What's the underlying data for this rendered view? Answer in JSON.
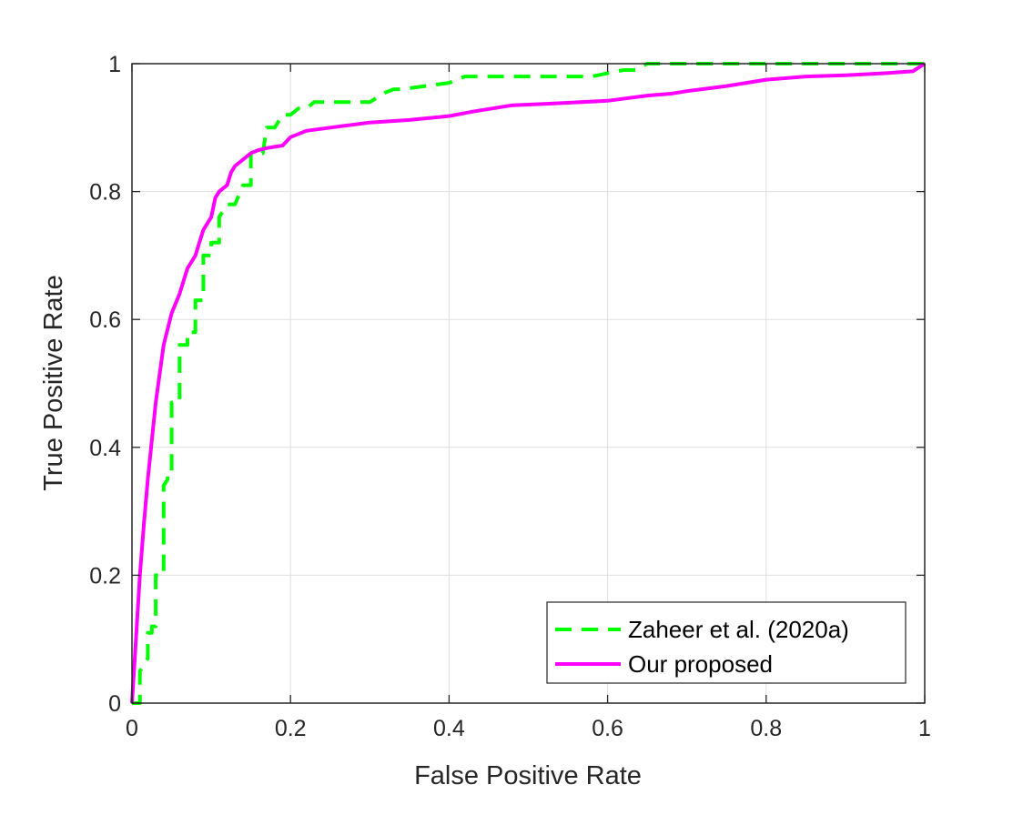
{
  "chart_data": {
    "type": "line",
    "xlabel": "False Positive Rate",
    "ylabel": "True Positive Rate",
    "xlim": [
      0,
      1
    ],
    "ylim": [
      0,
      1
    ],
    "xticks": [
      0,
      0.2,
      0.4,
      0.6,
      0.8,
      1
    ],
    "yticks": [
      0,
      0.2,
      0.4,
      0.6,
      0.8,
      1
    ],
    "xtick_labels": [
      "0",
      "0.2",
      "0.4",
      "0.6",
      "0.8",
      "1"
    ],
    "ytick_labels": [
      "0",
      "0.2",
      "0.4",
      "0.6",
      "0.8",
      "1"
    ],
    "grid": true,
    "legend_position": "bottom-right",
    "series": [
      {
        "name": "Zaheer et al. (2020a)",
        "color": "#00ff00",
        "style": "dashed",
        "x": [
          0,
          0.01,
          0.01,
          0.02,
          0.02,
          0.025,
          0.025,
          0.03,
          0.03,
          0.04,
          0.04,
          0.045,
          0.045,
          0.05,
          0.05,
          0.06,
          0.06,
          0.07,
          0.07,
          0.08,
          0.08,
          0.09,
          0.09,
          0.1,
          0.1,
          0.11,
          0.11,
          0.12,
          0.13,
          0.14,
          0.14,
          0.15,
          0.15,
          0.165,
          0.17,
          0.18,
          0.19,
          0.2,
          0.21,
          0.22,
          0.23,
          0.24,
          0.3,
          0.32,
          0.33,
          0.34,
          0.4,
          0.42,
          0.58,
          0.62,
          0.635,
          0.65,
          1.0
        ],
        "y": [
          0,
          0,
          0.05,
          0.07,
          0.11,
          0.11,
          0.12,
          0.12,
          0.2,
          0.2,
          0.34,
          0.35,
          0.36,
          0.36,
          0.47,
          0.47,
          0.56,
          0.56,
          0.58,
          0.58,
          0.63,
          0.63,
          0.7,
          0.7,
          0.72,
          0.72,
          0.76,
          0.78,
          0.78,
          0.81,
          0.81,
          0.81,
          0.86,
          0.86,
          0.9,
          0.9,
          0.92,
          0.92,
          0.93,
          0.93,
          0.94,
          0.94,
          0.94,
          0.955,
          0.96,
          0.96,
          0.97,
          0.98,
          0.98,
          0.99,
          0.99,
          1.0,
          1.0
        ]
      },
      {
        "name": "Our proposed",
        "color": "#ff00ff",
        "style": "solid",
        "x": [
          0,
          0.005,
          0.01,
          0.015,
          0.02,
          0.03,
          0.04,
          0.05,
          0.06,
          0.065,
          0.07,
          0.08,
          0.085,
          0.09,
          0.1,
          0.105,
          0.11,
          0.12,
          0.125,
          0.13,
          0.14,
          0.15,
          0.16,
          0.17,
          0.18,
          0.19,
          0.2,
          0.21,
          0.22,
          0.25,
          0.3,
          0.35,
          0.4,
          0.43,
          0.48,
          0.52,
          0.6,
          0.65,
          0.68,
          0.7,
          0.75,
          0.8,
          0.85,
          0.9,
          0.95,
          0.985,
          1.0
        ],
        "y": [
          0,
          0.1,
          0.2,
          0.28,
          0.35,
          0.47,
          0.56,
          0.61,
          0.64,
          0.66,
          0.68,
          0.7,
          0.72,
          0.74,
          0.76,
          0.79,
          0.8,
          0.81,
          0.83,
          0.84,
          0.85,
          0.86,
          0.865,
          0.868,
          0.87,
          0.872,
          0.885,
          0.89,
          0.895,
          0.9,
          0.908,
          0.912,
          0.918,
          0.925,
          0.935,
          0.937,
          0.942,
          0.95,
          0.953,
          0.957,
          0.965,
          0.975,
          0.98,
          0.982,
          0.985,
          0.988,
          1.0
        ]
      }
    ]
  }
}
